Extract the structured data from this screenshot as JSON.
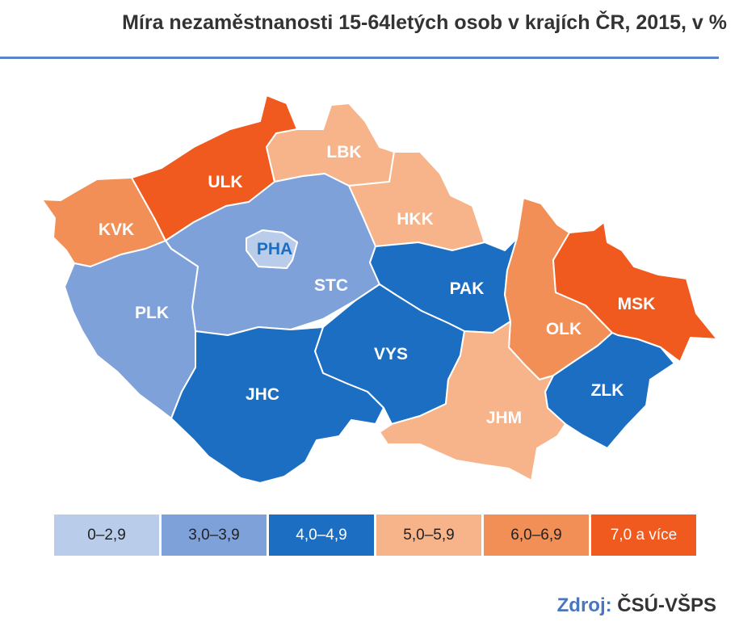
{
  "title": "Míra nezaměstnanosti 15-64letých osob v krajích ČR, 2015, v %",
  "colors": {
    "c0": "#b9cdeb",
    "c1": "#7fa1da",
    "c2": "#1c6ec2",
    "c3": "#f7b38a",
    "c4": "#f28f56",
    "c5": "#f05a1e",
    "title_rule": "#5b85c6",
    "source_key": "#4a76bd"
  },
  "legend": [
    {
      "label": "0–2,9",
      "color": "#b9cdeb"
    },
    {
      "label": "3,0–3,9",
      "color": "#7fa1da"
    },
    {
      "label": "4,0–4,9",
      "color": "#1c6ec2"
    },
    {
      "label": "5,0–5,9",
      "color": "#f7b38a"
    },
    {
      "label": "6,0–6,9",
      "color": "#f28f56"
    },
    {
      "label": "7,0 a více",
      "color": "#f05a1e"
    }
  ],
  "regions": [
    {
      "code": "ULK",
      "category": "7,0 a více"
    },
    {
      "code": "KVK",
      "category": "6,0–6,9"
    },
    {
      "code": "LBK",
      "category": "5,0–5,9"
    },
    {
      "code": "HKK",
      "category": "5,0–5,9"
    },
    {
      "code": "PHA",
      "category": "0–2,9"
    },
    {
      "code": "STC",
      "category": "3,0–3,9"
    },
    {
      "code": "PLK",
      "category": "3,0–3,9"
    },
    {
      "code": "PAK",
      "category": "4,0–4,9"
    },
    {
      "code": "MSK",
      "category": "7,0 a více"
    },
    {
      "code": "OLK",
      "category": "6,0–6,9"
    },
    {
      "code": "VYS",
      "category": "4,0–4,9"
    },
    {
      "code": "JHC",
      "category": "4,0–4,9"
    },
    {
      "code": "ZLK",
      "category": "4,0–4,9"
    },
    {
      "code": "JHM",
      "category": "5,0–5,9"
    }
  ],
  "source": {
    "key": "Zdroj:",
    "value": "ČSÚ-VŠPS"
  }
}
